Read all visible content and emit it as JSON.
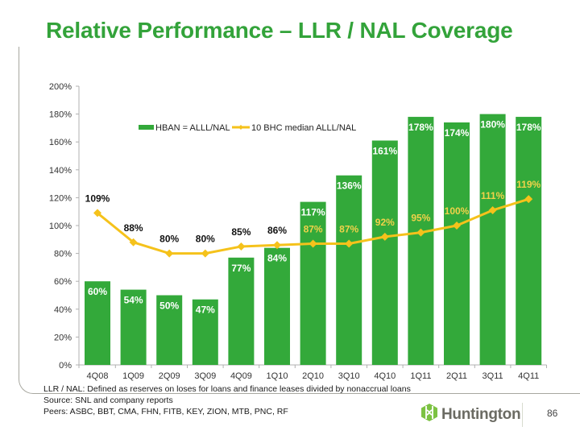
{
  "page": {
    "title": "Relative Performance – LLR / NAL Coverage",
    "footnotes": [
      "LLR / NAL: Defined as reserves on loses for loans and finance leases divided by nonaccrual loans",
      "Source: SNL and company reports",
      "Peers: ASBC, BBT, CMA, FHN, FITB, KEY, ZION, MTB, PNC, RF"
    ],
    "logo_text": "Huntington",
    "logo_icon": "huntington-logo-icon",
    "page_number": "86"
  },
  "colors": {
    "title": "#33a33a",
    "bar": "#33a93a",
    "line": "#f5c21b",
    "bar_label": "#ffffff",
    "line_label_outside": "#111111",
    "line_label_inside": "#f0d24a"
  },
  "chart_data": {
    "type": "bar",
    "title": "",
    "xlabel": "",
    "ylabel": "",
    "ylim": [
      0,
      200
    ],
    "yticks": [
      0,
      20,
      40,
      60,
      80,
      100,
      120,
      140,
      160,
      180,
      200
    ],
    "ytick_labels": [
      "0%",
      "20%",
      "40%",
      "60%",
      "80%",
      "100%",
      "120%",
      "140%",
      "160%",
      "180%",
      "200%"
    ],
    "grid": false,
    "legend_position": "top-left",
    "categories": [
      "4Q08",
      "1Q09",
      "2Q09",
      "3Q09",
      "4Q09",
      "1Q10",
      "2Q10",
      "3Q10",
      "4Q10",
      "1Q11",
      "2Q11",
      "3Q11",
      "4Q11"
    ],
    "series": [
      {
        "name": "HBAN = ALLL/NAL",
        "type": "bar",
        "values": [
          60,
          54,
          50,
          47,
          77,
          84,
          117,
          136,
          161,
          178,
          174,
          180,
          178
        ],
        "labels": [
          "60%",
          "54%",
          "50%",
          "47%",
          "77%",
          "84%",
          "117%",
          "136%",
          "161%",
          "178%",
          "174%",
          "180%",
          "178%"
        ]
      },
      {
        "name": "10 BHC median ALLL/NAL",
        "type": "line",
        "values": [
          109,
          88,
          80,
          80,
          85,
          86,
          87,
          87,
          92,
          95,
          100,
          111,
          119
        ],
        "labels": [
          "109%",
          "88%",
          "80%",
          "80%",
          "85%",
          "86%",
          "87%",
          "87%",
          "92%",
          "95%",
          "100%",
          "111%",
          "119%"
        ]
      }
    ]
  }
}
